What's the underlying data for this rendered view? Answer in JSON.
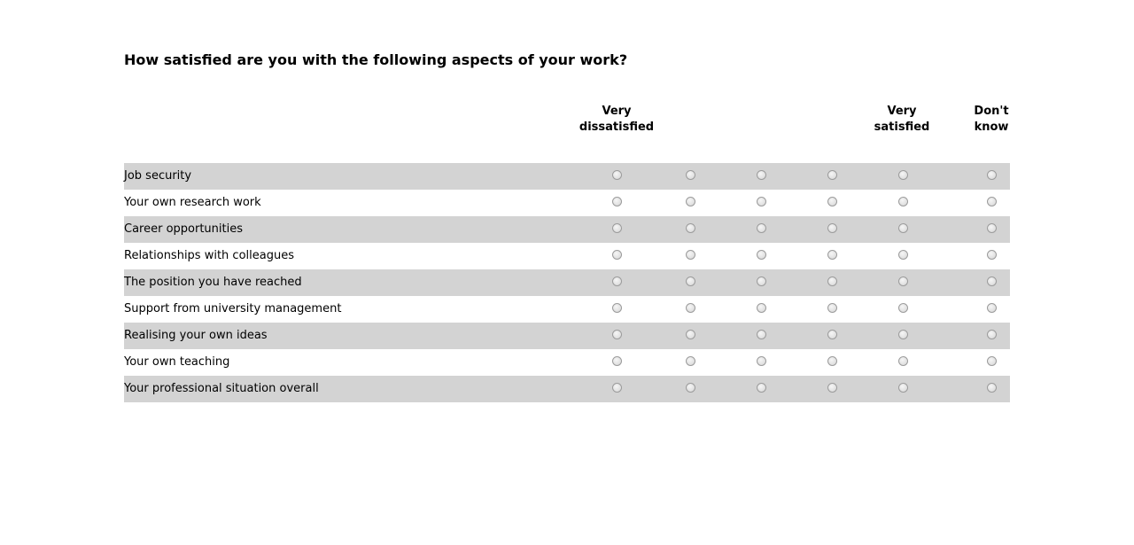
{
  "question": "How satisfied are you with the following aspects of your work?",
  "scale_headers": [
    {
      "line1": "Very",
      "line2": "dissatisfied"
    },
    {
      "line1": "",
      "line2": ""
    },
    {
      "line1": "",
      "line2": ""
    },
    {
      "line1": "",
      "line2": ""
    },
    {
      "line1": "Very",
      "line2": "satisfied"
    },
    {
      "line1": "Don't",
      "line2": "know"
    }
  ],
  "items": [
    "Job security",
    "Your own research work",
    "Career opportunities",
    "Relationships with colleagues",
    "The position you have reached",
    "Support from university management",
    "Realising your own ideas",
    "Your own teaching",
    "Your professional situation overall"
  ],
  "selected": [
    null,
    null,
    null,
    null,
    null,
    null,
    null,
    null,
    null
  ],
  "colors": {
    "row_shade": "#d3d3d3",
    "background": "#ffffff"
  }
}
